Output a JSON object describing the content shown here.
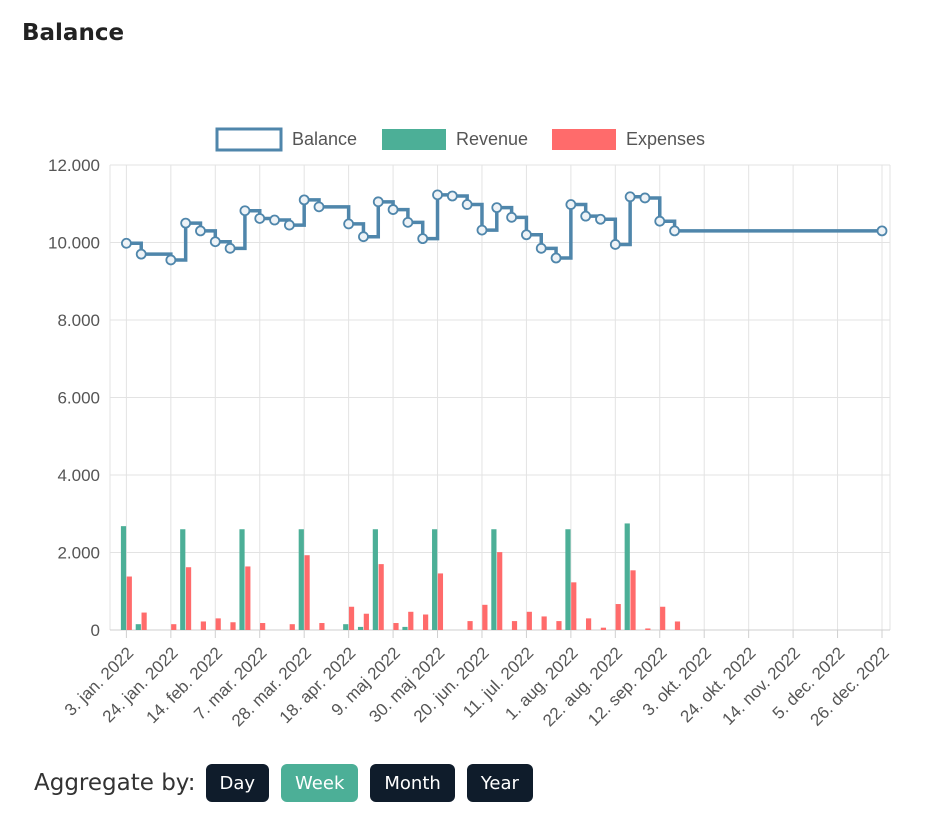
{
  "page": {
    "title": "Balance",
    "aggregate_label": "Aggregate by:",
    "buttons": [
      {
        "label": "Day",
        "active": false
      },
      {
        "label": "Week",
        "active": true
      },
      {
        "label": "Month",
        "active": false
      },
      {
        "label": "Year",
        "active": false
      }
    ]
  },
  "colors": {
    "balance": "#4f86ab",
    "revenue": "#4caf97",
    "expenses": "#ff6b6b",
    "button": "#0f1c2b",
    "button_active": "#4caf97"
  },
  "chart_data": {
    "type": "bar",
    "legend": [
      "Balance",
      "Revenue",
      "Expenses"
    ],
    "legend_placement": "top-center",
    "grid": true,
    "y_ticks": [
      "12.000",
      "10.000",
      "8.000",
      "6.000",
      "4.000",
      "2.000",
      "0"
    ],
    "ylim": [
      0,
      12000
    ],
    "x_tick_labels": [
      "3. jan. 2022",
      "24. jan. 2022",
      "14. feb. 2022",
      "7. mar. 2022",
      "28. mar. 2022",
      "18. apr. 2022",
      "9. maj 2022",
      "30. maj 2022",
      "20. jun. 2022",
      "11. jul. 2022",
      "1. aug. 2022",
      "22. aug. 2022",
      "12. sep. 2022",
      "3. okt. 2022",
      "24. okt. 2022",
      "14. nov. 2022",
      "5. dec. 2022",
      "26. dec. 2022"
    ],
    "weeks_start": "2022-01-03",
    "balance": [
      9980,
      9700,
      9700,
      9550,
      10500,
      10300,
      10020,
      9850,
      10820,
      10620,
      10580,
      10450,
      11100,
      10920,
      10920,
      10480,
      10150,
      11050,
      10850,
      10520,
      10100,
      11230,
      11200,
      10980,
      10320,
      10900,
      10650,
      10200,
      9850,
      9600,
      10980,
      10680,
      10600,
      9950,
      11180,
      11150,
      10550,
      10300,
      10300,
      10300,
      10300,
      10300,
      10300,
      10300,
      10300,
      10300,
      10300,
      10300,
      10300,
      10300,
      10300,
      10300
    ],
    "balance_markers": [
      0,
      1,
      3,
      4,
      5,
      6,
      7,
      8,
      9,
      10,
      11,
      12,
      13,
      15,
      16,
      17,
      18,
      19,
      20,
      21,
      22,
      23,
      24,
      25,
      26,
      27,
      28,
      29,
      30,
      31,
      32,
      33,
      34,
      35,
      36,
      37,
      51
    ],
    "revenue": [
      2680,
      150,
      0,
      0,
      2600,
      0,
      0,
      0,
      2600,
      0,
      0,
      0,
      2600,
      0,
      0,
      150,
      80,
      2600,
      0,
      80,
      0,
      2600,
      0,
      0,
      0,
      2600,
      0,
      0,
      0,
      0,
      2600,
      0,
      0,
      0,
      2750,
      0,
      0,
      0,
      0,
      0,
      0,
      0,
      0,
      0,
      0,
      0,
      0,
      0,
      0,
      0,
      0,
      0
    ],
    "expenses": [
      1380,
      450,
      0,
      150,
      1620,
      220,
      300,
      200,
      1640,
      180,
      0,
      150,
      1930,
      180,
      0,
      600,
      420,
      1700,
      180,
      470,
      400,
      1460,
      0,
      230,
      650,
      2010,
      230,
      470,
      350,
      230,
      1230,
      300,
      60,
      670,
      1540,
      40,
      600,
      220,
      0,
      0,
      0,
      0,
      0,
      0,
      0,
      0,
      0,
      0,
      0,
      0,
      0,
      0
    ]
  }
}
